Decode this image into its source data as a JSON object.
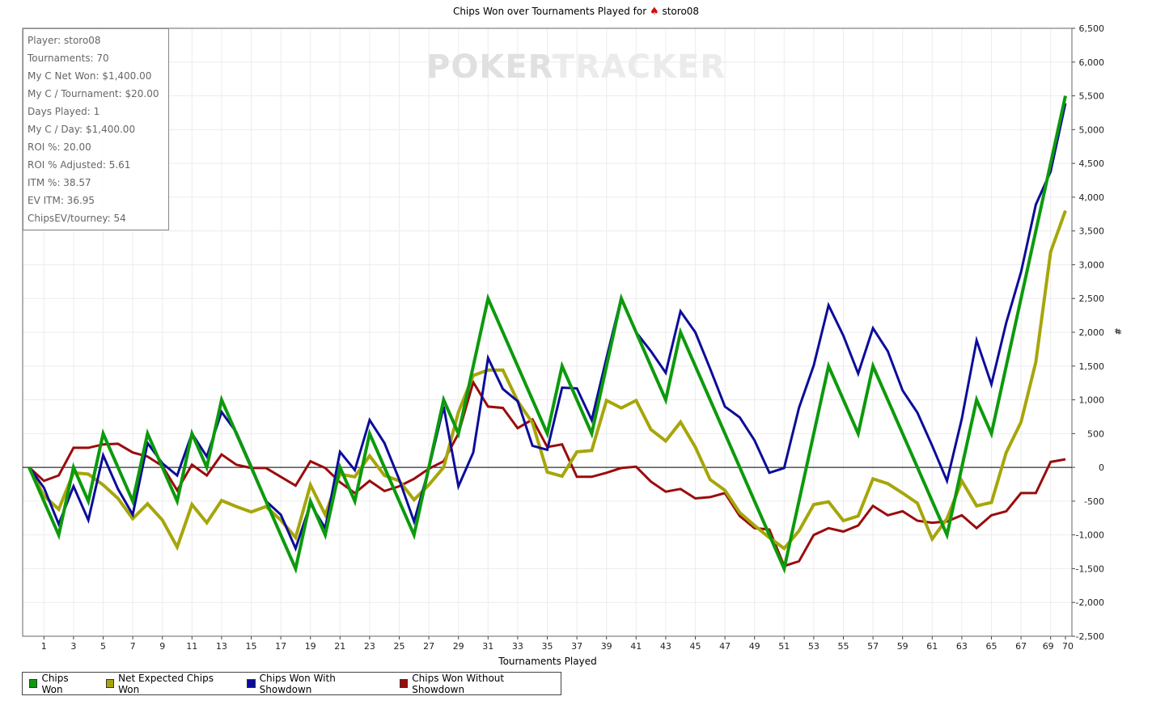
{
  "title": {
    "prefix": "Chips Won over Tournaments Played for",
    "player": "storo08",
    "icon": "spade-icon"
  },
  "watermark": {
    "part1": "POKER",
    "part2": "TRACKER"
  },
  "info": [
    "Player: storo08",
    "Tournaments: 70",
    "My C Net Won: $1,400.00",
    "My C / Tournament: $20.00",
    "Days Played: 1",
    "My C / Day: $1,400.00",
    "ROI %: 20.00",
    "ROI % Adjusted: 5.61",
    "ITM %: 38.57",
    "EV ITM: 36.95",
    "ChipsEV/tourney: 54"
  ],
  "chart_data": {
    "type": "line",
    "title": "Chips Won over Tournaments Played for storo08",
    "xlabel": "Tournaments Played",
    "ylabel": "#",
    "xlim": [
      0,
      70
    ],
    "ylim": [
      -2500,
      6500
    ],
    "grid": true,
    "legend_position": "bottom",
    "x_ticks": [
      1,
      3,
      5,
      7,
      9,
      11,
      13,
      15,
      17,
      19,
      21,
      23,
      25,
      27,
      29,
      31,
      33,
      35,
      37,
      39,
      41,
      43,
      45,
      47,
      49,
      51,
      53,
      55,
      57,
      59,
      61,
      63,
      65,
      67,
      69,
      70
    ],
    "y_ticks": [
      "-2,500",
      "-2,000",
      "-1,500",
      "-1,000",
      "-500",
      "0",
      "500",
      "1,000",
      "1,500",
      "2,000",
      "2,500",
      "3,000",
      "3,500",
      "4,000",
      "4,500",
      "5,000",
      "5,500",
      "6,000",
      "6,500"
    ],
    "series": [
      {
        "name": "Chips Won",
        "color": "#0c9a0c",
        "values": [
          0,
          -500,
          -1000,
          0,
          -500,
          500,
          0,
          -500,
          500,
          0,
          -500,
          500,
          0,
          1000,
          500,
          0,
          -500,
          -1000,
          -1500,
          -500,
          -1000,
          0,
          -500,
          500,
          0,
          -500,
          -1000,
          0,
          1000,
          500,
          1500,
          2500,
          2000,
          1500,
          1000,
          500,
          1500,
          1000,
          500,
          1500,
          2500,
          2000,
          1500,
          1000,
          2000,
          1500,
          1000,
          500,
          0,
          -500,
          -1000,
          -1500,
          -500,
          500,
          1500,
          1000,
          500,
          1500,
          1000,
          500,
          0,
          -500,
          -1000,
          0,
          1000,
          500,
          1500,
          2500,
          3500,
          4500,
          5500
        ]
      },
      {
        "name": "Net Expected Chips Won",
        "color": "#a6a60c",
        "values": [
          0,
          -420,
          -620,
          -80,
          -100,
          -260,
          -460,
          -760,
          -540,
          -780,
          -1180,
          -550,
          -820,
          -490,
          -580,
          -660,
          -580,
          -780,
          -1040,
          -260,
          -700,
          -100,
          -140,
          170,
          -120,
          -200,
          -480,
          -260,
          0,
          820,
          1360,
          1440,
          1440,
          980,
          660,
          -70,
          -130,
          230,
          250,
          990,
          880,
          990,
          560,
          390,
          670,
          300,
          -180,
          -340,
          -670,
          -860,
          -1040,
          -1200,
          -940,
          -550,
          -510,
          -790,
          -720,
          -170,
          -240,
          -380,
          -530,
          -1060,
          -760,
          -200,
          -570,
          -520,
          220,
          670,
          1560,
          3190,
          3800
        ]
      },
      {
        "name": "Chips Won With Showdown",
        "color": "#0c0c9a",
        "values": [
          0,
          -300,
          -840,
          -280,
          -780,
          180,
          -320,
          -700,
          360,
          60,
          -120,
          500,
          160,
          820,
          520,
          20,
          -500,
          -700,
          -1200,
          -540,
          -900,
          230,
          -40,
          700,
          360,
          -180,
          -800,
          -20,
          900,
          -280,
          220,
          1620,
          1160,
          980,
          320,
          260,
          1180,
          1170,
          700,
          1620,
          2510,
          2000,
          1720,
          1400,
          2310,
          2000,
          1460,
          900,
          740,
          400,
          -80,
          -10,
          880,
          1510,
          2400,
          1950,
          1390,
          2060,
          1720,
          1140,
          810,
          320,
          -200,
          720,
          1880,
          1230,
          2140,
          2890,
          3890,
          4380,
          5390
        ]
      },
      {
        "name": "Chips Won Without Showdown",
        "color": "#9a0c0c",
        "values": [
          0,
          -200,
          -120,
          290,
          290,
          340,
          350,
          220,
          160,
          20,
          -340,
          40,
          -120,
          190,
          40,
          -10,
          -10,
          -140,
          -270,
          90,
          -10,
          -220,
          -380,
          -200,
          -350,
          -280,
          -170,
          -20,
          90,
          500,
          1260,
          900,
          880,
          580,
          710,
          300,
          340,
          -140,
          -140,
          -80,
          -10,
          10,
          -210,
          -360,
          -320,
          -460,
          -440,
          -380,
          -720,
          -900,
          -920,
          -1460,
          -1390,
          -1000,
          -900,
          -950,
          -860,
          -570,
          -710,
          -650,
          -790,
          -820,
          -800,
          -710,
          -900,
          -710,
          -650,
          -380,
          -380,
          80,
          120
        ]
      }
    ]
  }
}
